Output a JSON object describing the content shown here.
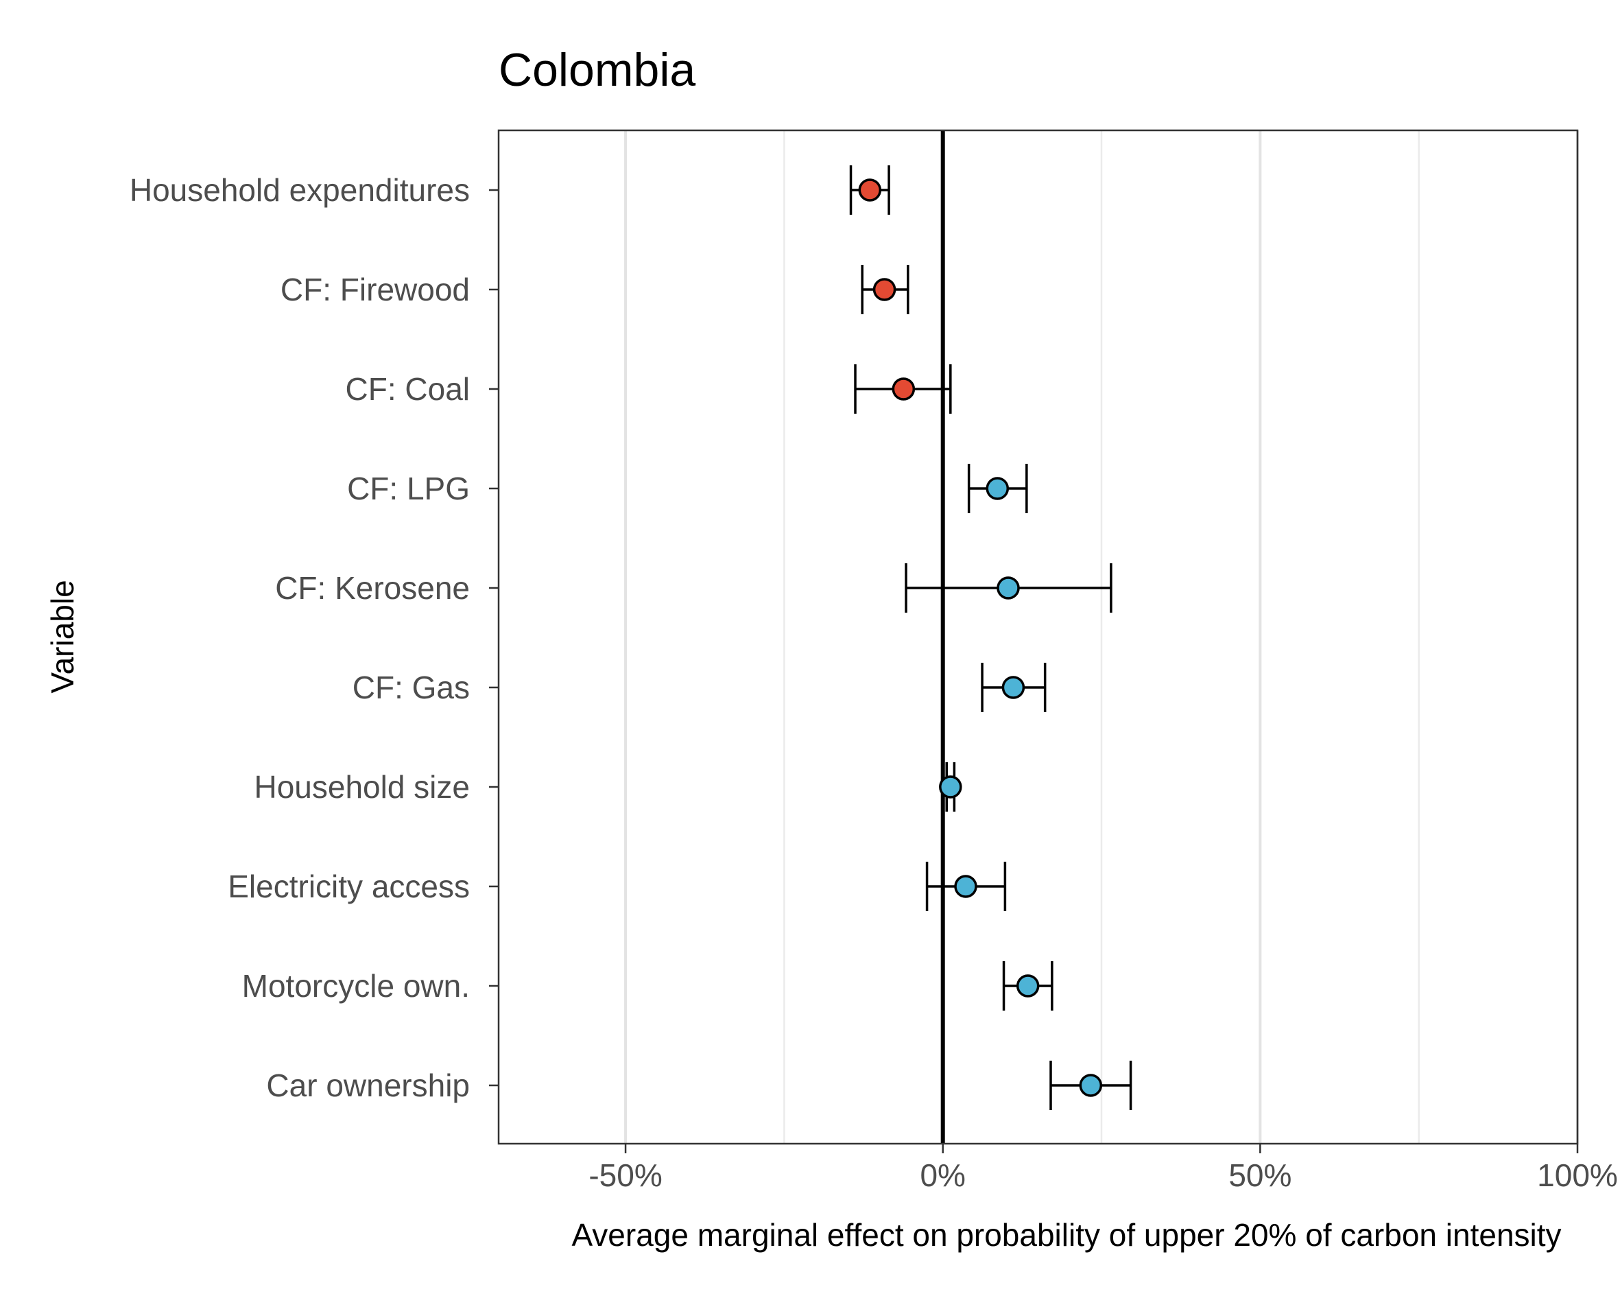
{
  "chart_data": {
    "type": "scatter",
    "title": "Colombia",
    "xlabel": "Average marginal effect on probability of upper 20% of carbon intensity",
    "ylabel": "Variable",
    "xlim": [
      -70,
      100
    ],
    "xticks": [
      -50,
      0,
      50,
      100
    ],
    "xtick_labels": [
      "-50%",
      "0%",
      "50%",
      "100%"
    ],
    "minor_gridlines": [
      -25,
      25,
      75
    ],
    "reference_line": 0,
    "grid": true,
    "legend": "none",
    "colors": {
      "negative": "#e34a33",
      "positive": "#4db3d6"
    },
    "points": [
      {
        "label": "Household expenditures",
        "estimate": -11.5,
        "lower": -14.5,
        "upper": -8.5,
        "sign": "negative"
      },
      {
        "label": "CF: Firewood",
        "estimate": -9.2,
        "lower": -12.7,
        "upper": -5.5,
        "sign": "negative"
      },
      {
        "label": "CF: Coal",
        "estimate": -6.2,
        "lower": -13.8,
        "upper": 1.2,
        "sign": "negative"
      },
      {
        "label": "CF: LPG",
        "estimate": 8.6,
        "lower": 4.1,
        "upper": 13.2,
        "sign": "positive"
      },
      {
        "label": "CF: Kerosene",
        "estimate": 10.3,
        "lower": -5.8,
        "upper": 26.5,
        "sign": "positive"
      },
      {
        "label": "CF: Gas",
        "estimate": 11.1,
        "lower": 6.2,
        "upper": 16.1,
        "sign": "positive"
      },
      {
        "label": "Household size",
        "estimate": 1.2,
        "lower": 0.6,
        "upper": 1.8,
        "sign": "positive"
      },
      {
        "label": "Electricity access",
        "estimate": 3.6,
        "lower": -2.5,
        "upper": 9.8,
        "sign": "positive"
      },
      {
        "label": "Motorcycle own.",
        "estimate": 13.4,
        "lower": 9.6,
        "upper": 17.2,
        "sign": "positive"
      },
      {
        "label": "Car ownership",
        "estimate": 23.3,
        "lower": 17.0,
        "upper": 29.6,
        "sign": "positive"
      }
    ]
  }
}
